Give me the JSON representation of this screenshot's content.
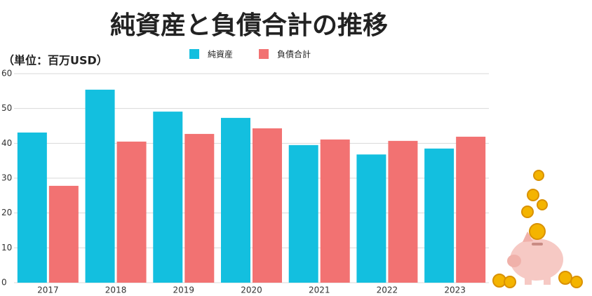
{
  "chart_data": {
    "type": "bar",
    "title": "純資産と負債合計の推移",
    "subtitle": "（単位：百万USD）",
    "categories": [
      "2017",
      "2018",
      "2019",
      "2020",
      "2021",
      "2022",
      "2023"
    ],
    "series": [
      {
        "name": "純資産",
        "color": "#13bfdf",
        "values": [
          43.1,
          55.4,
          49.1,
          47.3,
          39.5,
          36.8,
          38.5
        ]
      },
      {
        "name": "負債合計",
        "color": "#f27272",
        "values": [
          27.8,
          40.5,
          42.7,
          44.3,
          41.1,
          40.7,
          41.9
        ]
      }
    ],
    "ylim": [
      0,
      60
    ],
    "yticks": [
      0,
      10,
      20,
      30,
      40,
      50,
      60
    ],
    "grid": true
  }
}
